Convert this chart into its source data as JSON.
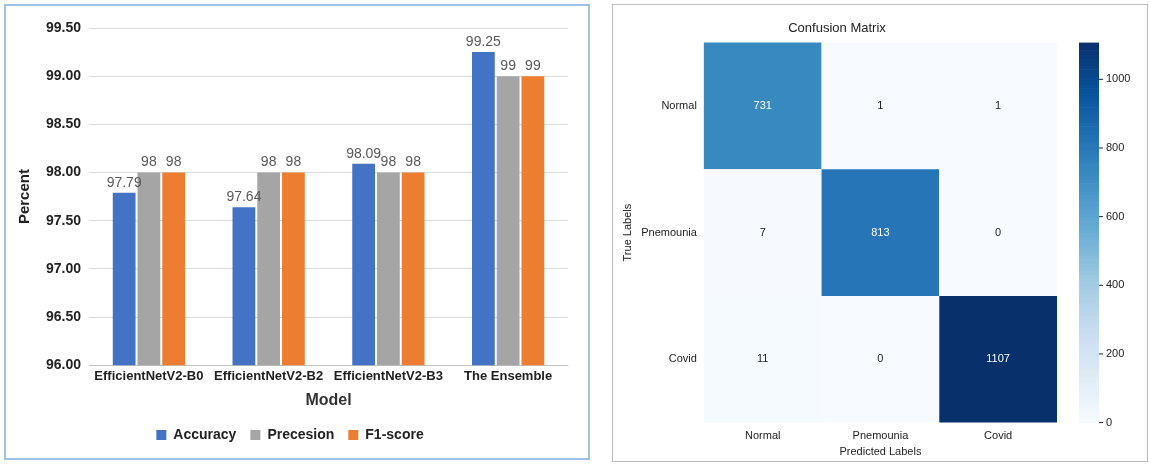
{
  "chart_data": [
    {
      "type": "bar",
      "xlabel": "Model",
      "ylabel": "Percent",
      "categories": [
        "EfficientNetV2-B0",
        "EfficientNetV2-B2",
        "EfficientNetV2-B3",
        "The Ensemble"
      ],
      "series": [
        {
          "name": "Accuracy",
          "color": "#4472c4",
          "values": [
            97.79,
            97.64,
            98.09,
            99.25
          ]
        },
        {
          "name": "Precesion",
          "color": "#a5a5a5",
          "values": [
            98,
            98,
            98,
            99
          ]
        },
        {
          "name": "F1-score",
          "color": "#ed7d31",
          "values": [
            98,
            98,
            98,
            99
          ]
        }
      ],
      "ylim": [
        96,
        99.5
      ],
      "yticks": [
        {
          "value": 96,
          "label": "96.00"
        },
        {
          "value": 96.5,
          "label": "96.50"
        },
        {
          "value": 97,
          "label": "97.00"
        },
        {
          "value": 97.5,
          "label": "97.50"
        },
        {
          "value": 98,
          "label": "98.00"
        },
        {
          "value": 98.5,
          "label": "98.50"
        },
        {
          "value": 99,
          "label": "99.00"
        },
        {
          "value": 99.5,
          "label": "99.50"
        }
      ],
      "grid": "y",
      "legend": "bottom",
      "data_labels": true
    },
    {
      "type": "heatmap",
      "title": "Confusion Matrix",
      "xlabel": "Predicted Labels",
      "ylabel": "True Labels",
      "categories": [
        "Normal",
        "Pnemounia",
        "Covid"
      ],
      "y_categories": [
        "Normal",
        "Pnemounia",
        "Covid"
      ],
      "cells": [
        [
          731,
          1,
          1
        ],
        [
          7,
          813,
          0
        ],
        [
          11,
          0,
          1107
        ]
      ],
      "clim": [
        0,
        1107
      ],
      "cticks": [
        0,
        200,
        400,
        600,
        800,
        1000
      ],
      "data_labels": true
    }
  ]
}
